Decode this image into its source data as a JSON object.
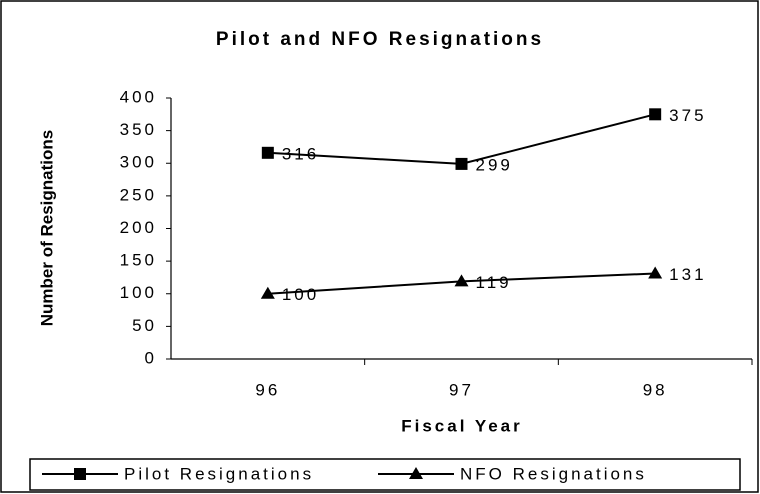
{
  "chart_data": {
    "type": "line",
    "title": "Pilot and NFO Resignations",
    "x_label": "Fiscal Year",
    "y_label": "Number of Resignations",
    "categories": [
      "96",
      "97",
      "98"
    ],
    "series": [
      {
        "name": "Pilot Resignations",
        "color": "#000000",
        "marker": "square",
        "values": [
          316,
          299,
          375
        ]
      },
      {
        "name": "NFO Resignations",
        "color": "#000000",
        "marker": "triangle",
        "values": [
          100,
          119,
          131
        ]
      }
    ],
    "ylim": [
      0,
      400
    ],
    "yticks": [
      0,
      50,
      100,
      150,
      200,
      250,
      300,
      350,
      400
    ],
    "grid": false,
    "legend": "bottom"
  }
}
